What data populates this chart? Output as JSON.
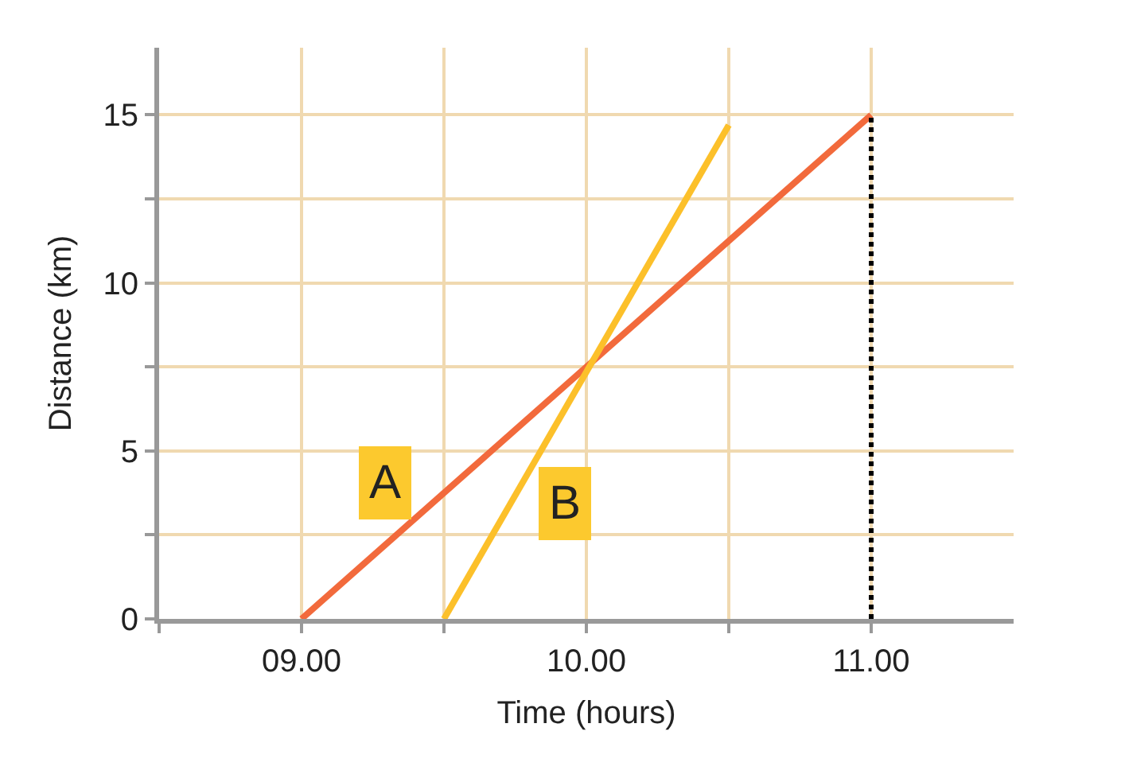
{
  "chart_data": {
    "type": "line",
    "xlabel": "Time (hours)",
    "ylabel": "Distance (km)",
    "series": [
      {
        "name": "A",
        "color": "#f26a3c",
        "x": [
          9,
          11
        ],
        "values": [
          0,
          15
        ]
      },
      {
        "name": "B",
        "color": "#fcc02a",
        "x": [
          9.5,
          10.5
        ],
        "values": [
          0,
          14.7
        ]
      }
    ],
    "xlim": [
      8.5,
      11.5
    ],
    "ylim": [
      0,
      17
    ],
    "xticks": [
      {
        "value": 8.5,
        "label": null
      },
      {
        "value": 9,
        "label": "09.00"
      },
      {
        "value": 9.5,
        "label": null
      },
      {
        "value": 10,
        "label": "10.00"
      },
      {
        "value": 10.5,
        "label": null
      },
      {
        "value": 11,
        "label": "11.00"
      }
    ],
    "yticks": [
      0,
      {
        "value": 2.5,
        "label": null
      },
      5,
      {
        "value": 7.5,
        "label": null
      },
      10,
      {
        "value": 12.5,
        "label": null
      },
      15
    ],
    "ref_lines": [
      {
        "axis": "x",
        "value": 11,
        "color": "#000000",
        "line_style": "dotted"
      }
    ],
    "grid": true,
    "legend": false,
    "marker": "none",
    "line_style": "solid"
  }
}
